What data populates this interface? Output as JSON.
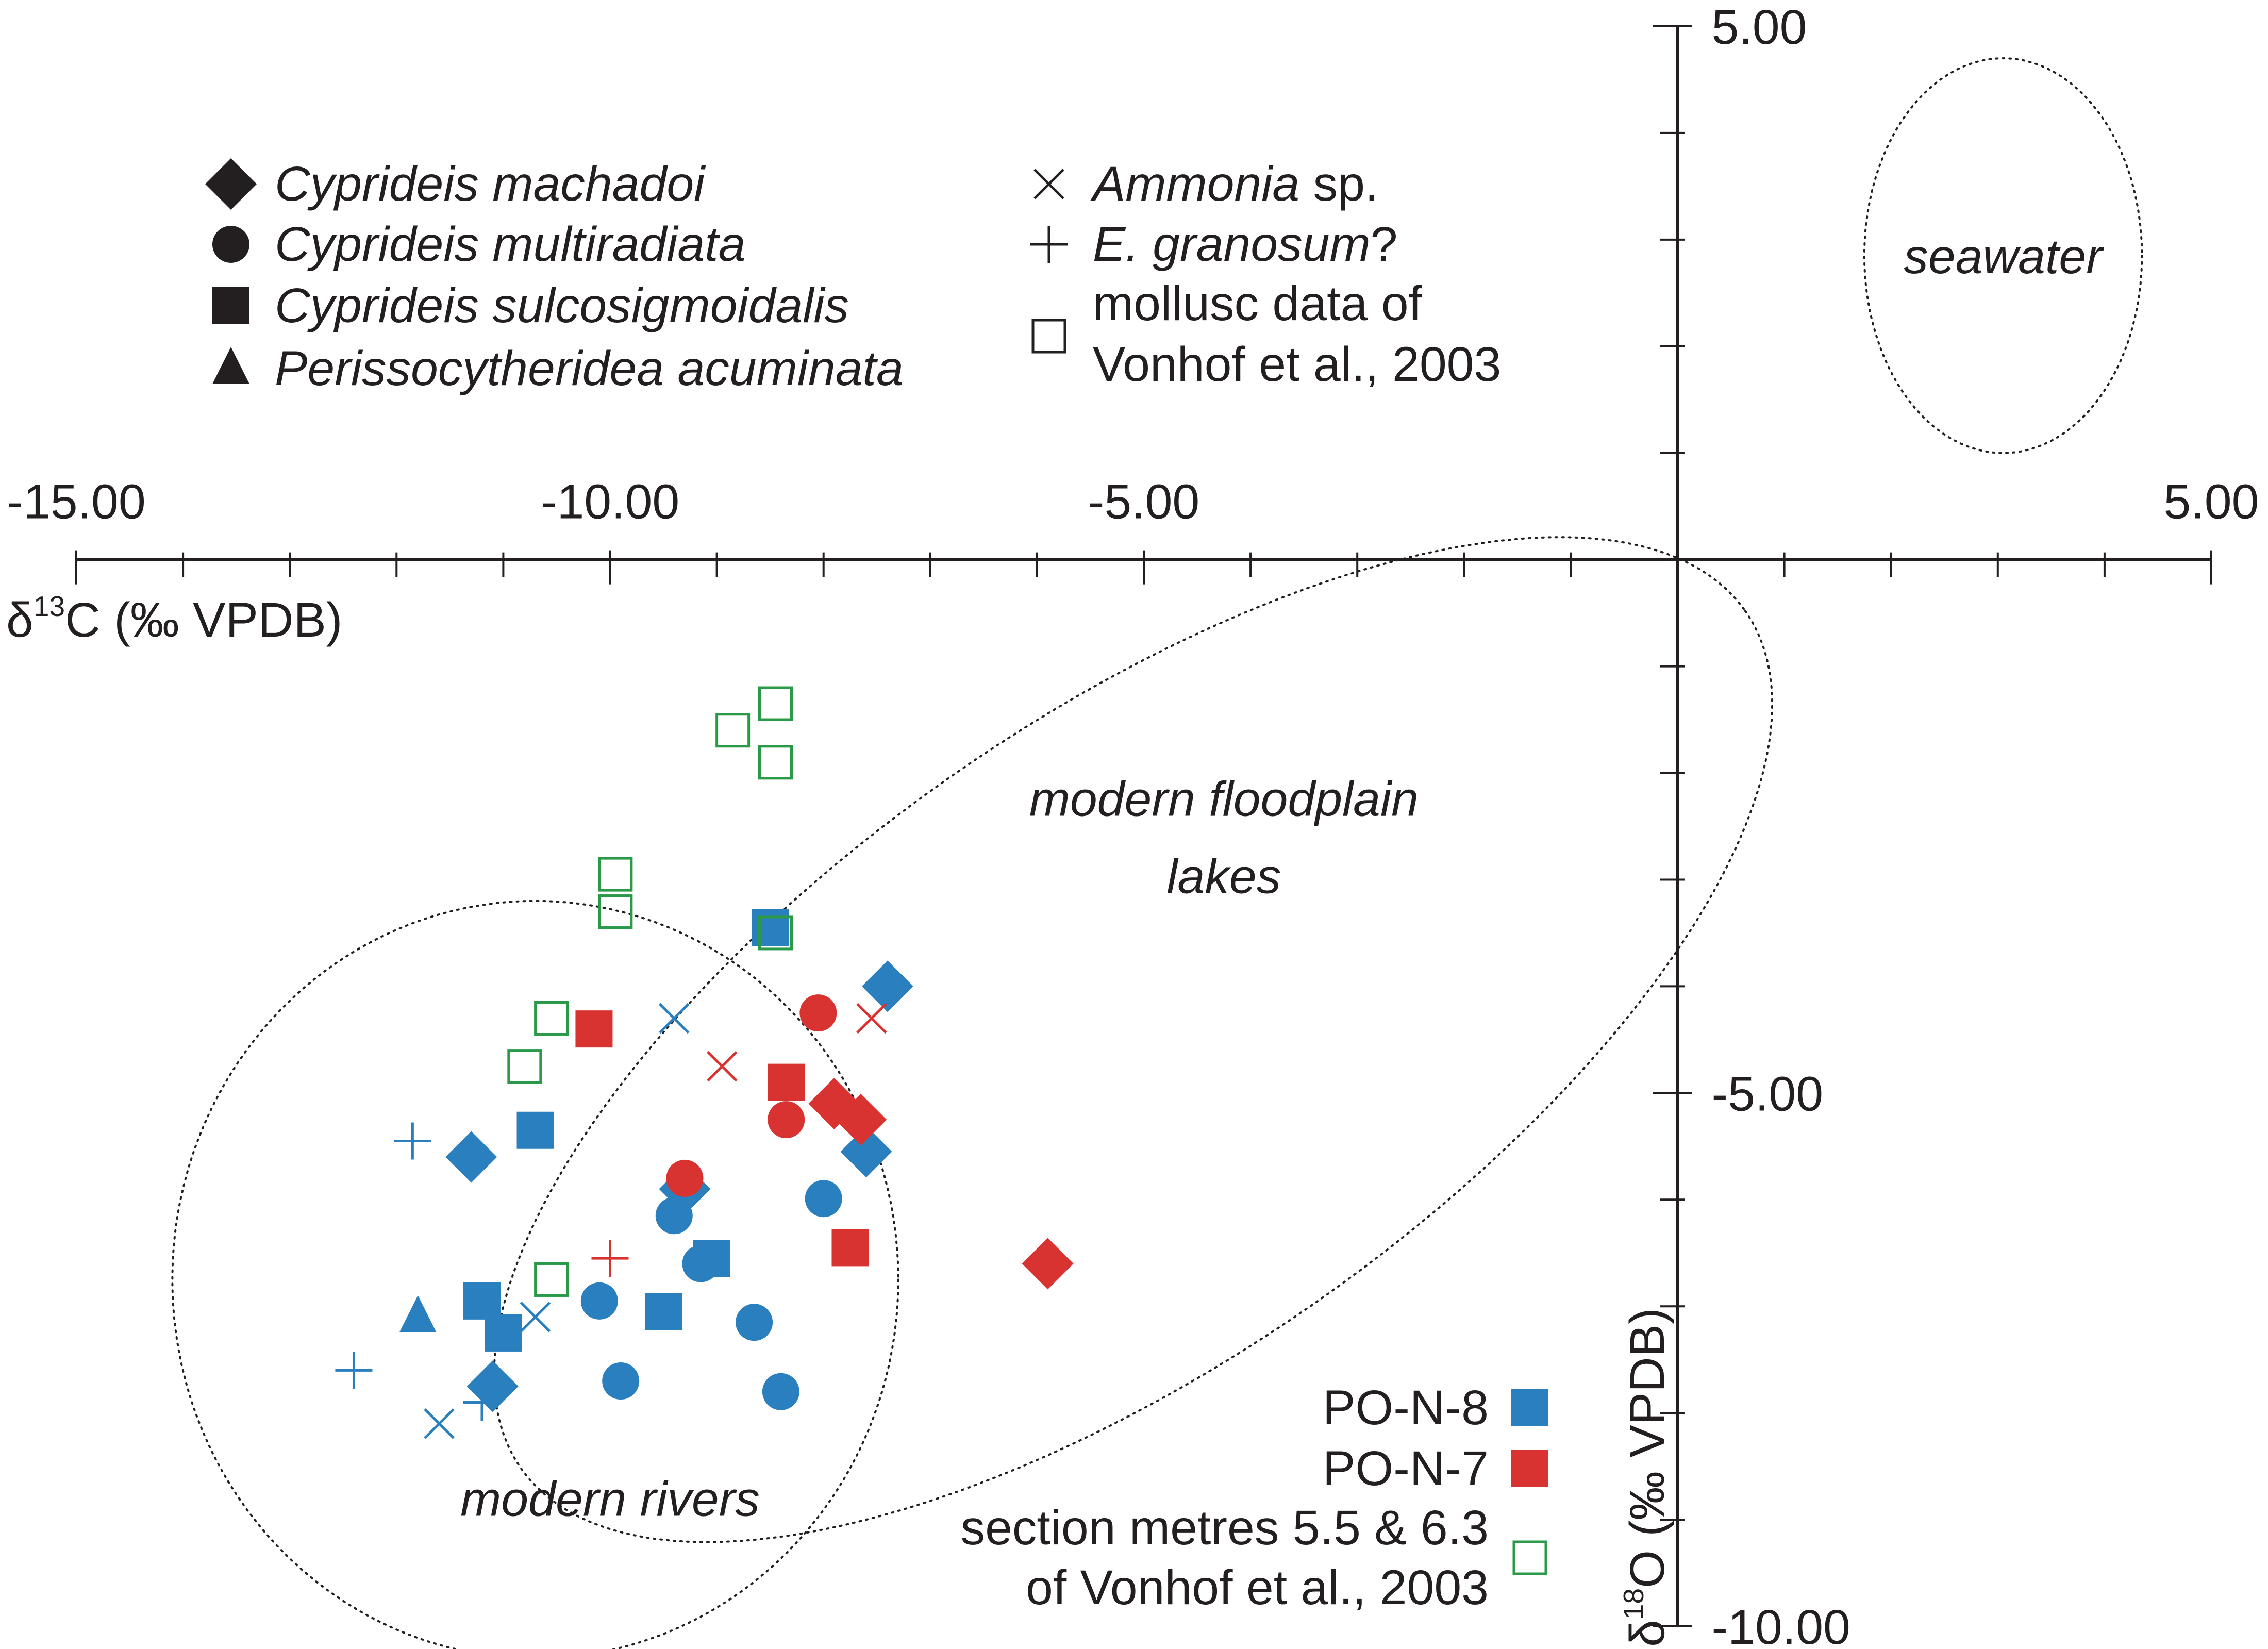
{
  "chart_data": {
    "type": "scatter",
    "xlabel_base": "δ",
    "xlabel_sup": "13",
    "xlabel_rest": "C (‰ VPDB)",
    "ylabel_base": "δ",
    "ylabel_sup": "18",
    "ylabel_rest": "O (‰ VPDB)",
    "xlim": [
      -15,
      5
    ],
    "ylim": [
      -10,
      5
    ],
    "x_tick_labels": [
      {
        "value": -15,
        "label": "-15.00"
      },
      {
        "value": -10,
        "label": "-10.00"
      },
      {
        "value": -5,
        "label": "-5.00"
      },
      {
        "value": 5,
        "label": "5.00"
      }
    ],
    "y_tick_labels": [
      {
        "value": 5,
        "label": "5.00"
      },
      {
        "value": -5,
        "label": "-5.00"
      },
      {
        "value": -10,
        "label": "-10.00"
      }
    ],
    "x_minor_ticks": [
      -15,
      -14,
      -13,
      -12,
      -11,
      -10,
      -9,
      -8,
      -7,
      -6,
      -5,
      -4,
      -3,
      -2,
      -1,
      1,
      2,
      3,
      4,
      5
    ],
    "y_minor_ticks": [
      5,
      4,
      3,
      2,
      1,
      -1,
      -2,
      -3,
      -4,
      -5,
      -6,
      -7,
      -8,
      -9,
      -10
    ],
    "regions": [
      {
        "name": "seawater",
        "label_lines": [
          "seawater"
        ],
        "cx": 3.05,
        "cy": 2.85,
        "rx": 1.3,
        "ry": 1.85,
        "rotation": 0,
        "label_x": 3.05,
        "label_y": 2.85
      },
      {
        "name": "modern-floodplain-lakes",
        "label_lines": [
          "modern floodplain",
          "lakes"
        ],
        "cx": -5.1,
        "cy": -4.5,
        "rx": 7.0,
        "ry": 3.0,
        "rotation": -35,
        "label_x": -4.25,
        "label_y": -2.6
      },
      {
        "name": "modern-rivers",
        "label_lines": [
          "modern rivers"
        ],
        "cx": -10.7,
        "cy": -6.75,
        "rx": 3.4,
        "ry": 3.55,
        "rotation": 0,
        "label_x": -10.0,
        "label_y": -8.8
      }
    ],
    "species": [
      {
        "shape": "diamond",
        "name": "Cyprideis machadoi",
        "note": ""
      },
      {
        "shape": "circle",
        "name": "Cyprideis multiradiata",
        "note": ""
      },
      {
        "shape": "square",
        "name": "Cyprideis sulcosigmoidalis",
        "note": ""
      },
      {
        "shape": "triangle",
        "name": "Perissocytheridea acuminata",
        "note": ""
      },
      {
        "shape": "x",
        "name": "Ammonia",
        "note": " sp."
      },
      {
        "shape": "plus",
        "name": "E. granosum",
        "note": "?"
      },
      {
        "shape": "open-square",
        "name": "",
        "note": "mollusc data of",
        "note2": "Vonhof et al., 2003"
      }
    ],
    "sources": [
      {
        "name": "PO-N-8",
        "label_lines": [
          "PO-N-8"
        ],
        "color": "#2a7fbf",
        "kind": "filled"
      },
      {
        "name": "PO-N-7",
        "label_lines": [
          "PO-N-7"
        ],
        "color": "#d93331",
        "kind": "filled"
      },
      {
        "name": "Vonhof et al., 2003",
        "label_lines": [
          "section metres 5.5 & 6.3",
          "of Vonhof et al., 2003"
        ],
        "color": "#2b9a48",
        "kind": "open"
      }
    ],
    "series": [
      {
        "name": "PO-N-8",
        "color": "#2a7fbf",
        "points": [
          {
            "shape": "diamond",
            "x": -7.4,
            "y": -4.0
          },
          {
            "shape": "diamond",
            "x": -7.6,
            "y": -5.55
          },
          {
            "shape": "diamond",
            "x": -11.3,
            "y": -5.6
          },
          {
            "shape": "diamond",
            "x": -9.3,
            "y": -5.9
          },
          {
            "shape": "diamond",
            "x": -11.1,
            "y": -7.75
          },
          {
            "shape": "circle",
            "x": -8.0,
            "y": -5.99
          },
          {
            "shape": "circle",
            "x": -9.4,
            "y": -6.15
          },
          {
            "shape": "circle",
            "x": -9.15,
            "y": -6.6
          },
          {
            "shape": "circle",
            "x": -10.1,
            "y": -6.95
          },
          {
            "shape": "circle",
            "x": -8.65,
            "y": -7.15
          },
          {
            "shape": "circle",
            "x": -9.9,
            "y": -7.7
          },
          {
            "shape": "circle",
            "x": -8.4,
            "y": -7.8
          },
          {
            "shape": "square",
            "x": -8.5,
            "y": -3.45
          },
          {
            "shape": "square",
            "x": -10.7,
            "y": -5.35
          },
          {
            "shape": "square",
            "x": -9.05,
            "y": -6.55
          },
          {
            "shape": "square",
            "x": -11.2,
            "y": -6.95
          },
          {
            "shape": "square",
            "x": -9.5,
            "y": -7.05
          },
          {
            "shape": "square",
            "x": -11.0,
            "y": -7.25
          },
          {
            "shape": "triangle",
            "x": -11.8,
            "y": -7.1
          },
          {
            "shape": "x",
            "x": -9.4,
            "y": -4.3
          },
          {
            "shape": "x",
            "x": -10.7,
            "y": -7.1
          },
          {
            "shape": "x",
            "x": -11.6,
            "y": -8.1
          },
          {
            "shape": "plus",
            "x": -11.85,
            "y": -5.45
          },
          {
            "shape": "plus",
            "x": -12.4,
            "y": -7.6
          },
          {
            "shape": "plus",
            "x": -11.2,
            "y": -7.9
          }
        ]
      },
      {
        "name": "PO-N-7",
        "color": "#d93331",
        "points": [
          {
            "shape": "diamond",
            "x": -7.9,
            "y": -5.1
          },
          {
            "shape": "diamond",
            "x": -7.65,
            "y": -5.25
          },
          {
            "shape": "diamond",
            "x": -5.9,
            "y": -6.6
          },
          {
            "shape": "circle",
            "x": -8.05,
            "y": -4.25
          },
          {
            "shape": "circle",
            "x": -8.35,
            "y": -5.25
          },
          {
            "shape": "circle",
            "x": -9.3,
            "y": -5.8
          },
          {
            "shape": "square",
            "x": -10.15,
            "y": -4.4
          },
          {
            "shape": "square",
            "x": -8.35,
            "y": -4.9
          },
          {
            "shape": "square",
            "x": -7.75,
            "y": -6.45
          },
          {
            "shape": "x",
            "x": -7.55,
            "y": -4.3
          },
          {
            "shape": "x",
            "x": -8.95,
            "y": -4.75
          },
          {
            "shape": "plus",
            "x": -10.0,
            "y": -6.55
          }
        ]
      },
      {
        "name": "Vonhof et al., 2003",
        "color": "#2b9a48",
        "points": [
          {
            "shape": "open-square",
            "x": -8.45,
            "y": -1.35
          },
          {
            "shape": "open-square",
            "x": -8.85,
            "y": -1.6
          },
          {
            "shape": "open-square",
            "x": -8.45,
            "y": -1.9
          },
          {
            "shape": "open-square",
            "x": -9.95,
            "y": -2.95
          },
          {
            "shape": "open-square",
            "x": -9.95,
            "y": -3.3
          },
          {
            "shape": "open-square",
            "x": -8.45,
            "y": -3.5
          },
          {
            "shape": "open-square",
            "x": -10.55,
            "y": -4.3
          },
          {
            "shape": "open-square",
            "x": -10.8,
            "y": -4.75
          },
          {
            "shape": "open-square",
            "x": -10.55,
            "y": -6.75
          }
        ]
      }
    ]
  }
}
